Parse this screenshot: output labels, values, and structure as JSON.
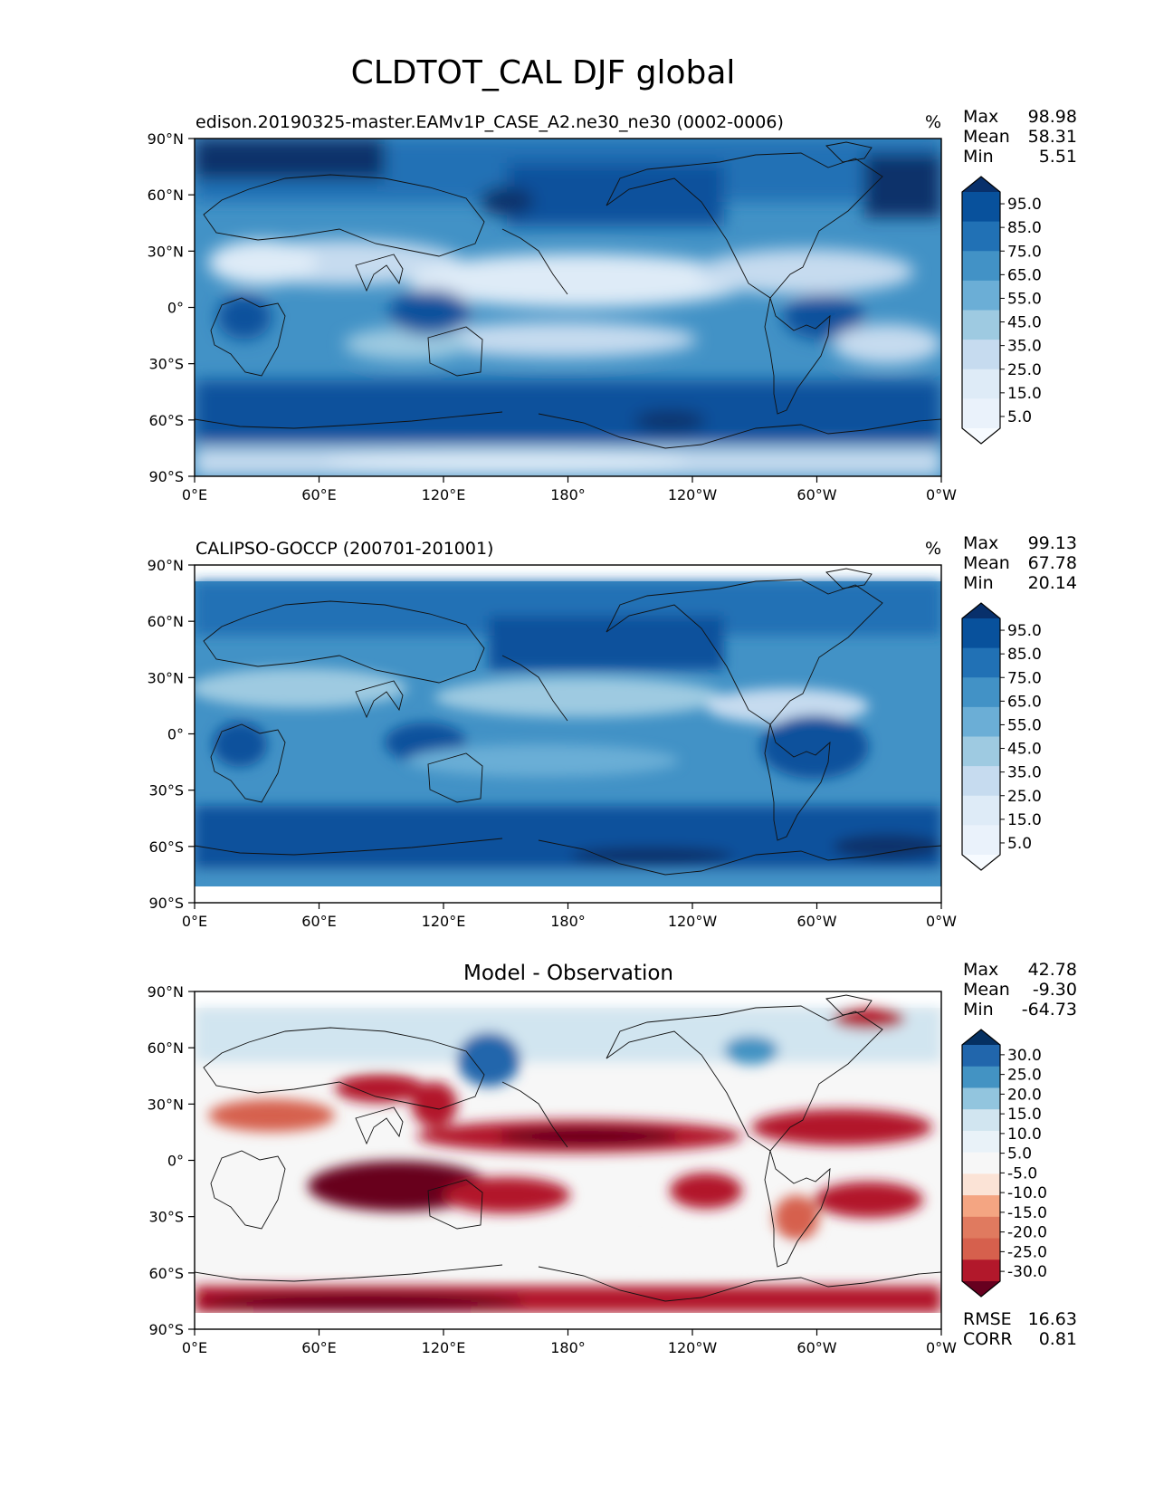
{
  "figure": {
    "title": "CLDTOT_CAL DJF global"
  },
  "axes": {
    "lat_ticks": [
      "90°N",
      "60°N",
      "30°N",
      "0°",
      "30°S",
      "60°S",
      "90°S"
    ],
    "lon_ticks": [
      "0°E",
      "60°E",
      "120°E",
      "180°",
      "120°W",
      "60°W",
      "0°W"
    ]
  },
  "panels": [
    {
      "id": "model",
      "title_left": "edison.20190325-master.EAMv1P_CASE_A2.ne30_ne30 (0002-0006)",
      "units": "%",
      "stats": [
        {
          "label": "Max",
          "value": "98.98"
        },
        {
          "label": "Mean",
          "value": "58.31"
        },
        {
          "label": "Min",
          "value": "5.51"
        }
      ],
      "colorbar_labels": [
        "95.0",
        "85.0",
        "75.0",
        "65.0",
        "55.0",
        "45.0",
        "35.0",
        "25.0",
        "15.0",
        "5.0"
      ],
      "colormap": [
        "#08306b",
        "#08519c",
        "#2171b5",
        "#4292c6",
        "#6baed6",
        "#9ecae1",
        "#c6dbef",
        "#deebf7",
        "#eaf2fb",
        "#f7fbff"
      ]
    },
    {
      "id": "obs",
      "title_left": "CALIPSO-GOCCP (200701-201001)",
      "units": "%",
      "stats": [
        {
          "label": "Max",
          "value": "99.13"
        },
        {
          "label": "Mean",
          "value": "67.78"
        },
        {
          "label": "Min",
          "value": "20.14"
        }
      ],
      "colorbar_labels": [
        "95.0",
        "85.0",
        "75.0",
        "65.0",
        "55.0",
        "45.0",
        "35.0",
        "25.0",
        "15.0",
        "5.0"
      ],
      "colormap": [
        "#08306b",
        "#08519c",
        "#2171b5",
        "#4292c6",
        "#6baed6",
        "#9ecae1",
        "#c6dbef",
        "#deebf7",
        "#eaf2fb",
        "#f7fbff"
      ]
    },
    {
      "id": "diff",
      "title_center": "Model - Observation",
      "stats": [
        {
          "label": "Max",
          "value": "42.78"
        },
        {
          "label": "Mean",
          "value": "-9.30"
        },
        {
          "label": "Min",
          "value": "-64.73"
        }
      ],
      "colorbar_labels": [
        "30.0",
        "25.0",
        "20.0",
        "15.0",
        "10.0",
        "5.0",
        "-5.0",
        "-10.0",
        "-15.0",
        "-20.0",
        "-25.0",
        "-30.0"
      ],
      "colormap": [
        "#053061",
        "#2166ac",
        "#4393c3",
        "#92c5de",
        "#d1e5f0",
        "#e9f2f8",
        "#f7f7f7",
        "#fbe3d6",
        "#f4a582",
        "#e07a5f",
        "#d6604d",
        "#b2182b",
        "#67001f"
      ],
      "footer_stats": [
        {
          "label": "RMSE",
          "value": "16.63"
        },
        {
          "label": "CORR",
          "value": "0.81"
        }
      ]
    }
  ]
}
